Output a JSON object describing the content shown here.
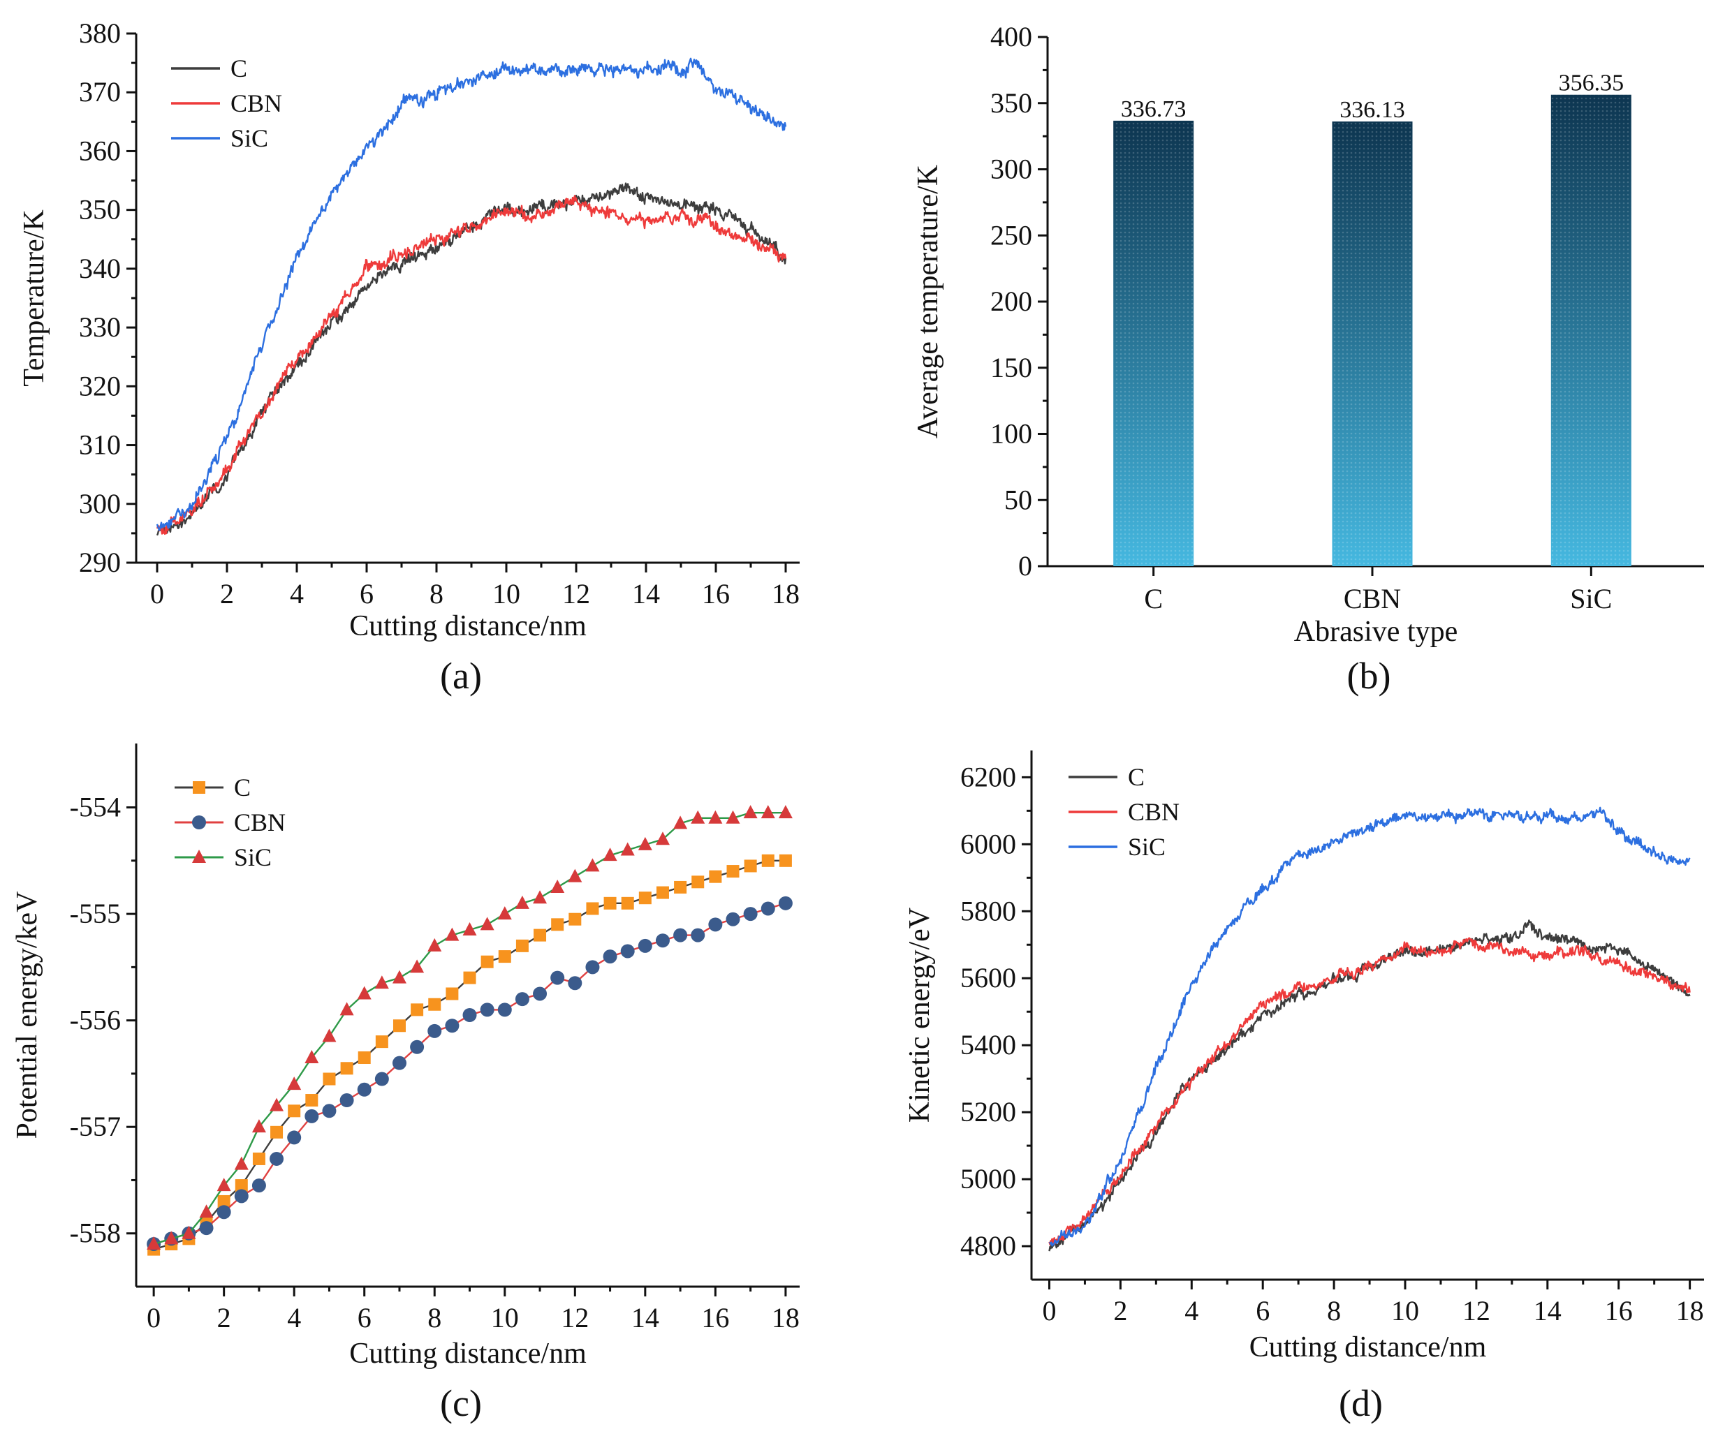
{
  "colors": {
    "C_line": "#3d3d3d",
    "CBN_line": "#ee3a3a",
    "SiC_line": "#2c6fe0",
    "C_marker": "#f7931e",
    "CBN_marker": "#3b5b8c",
    "SiC_marker": "#d63a3a",
    "marker_connector": "#2e9a48",
    "bar_top": "#0d3550",
    "bar_bottom": "#45b8e0"
  },
  "chart_data": [
    {
      "id": "a",
      "panel_label": "(a)",
      "type": "line",
      "xlabel": "Cutting distance/nm",
      "ylabel": "Temperature/K",
      "xlim": [
        -0.6,
        18.4
      ],
      "ylim": [
        290,
        380
      ],
      "xticks": [
        0,
        2,
        4,
        6,
        8,
        10,
        12,
        14,
        16,
        18
      ],
      "yticks": [
        290,
        300,
        310,
        320,
        330,
        340,
        350,
        360,
        370,
        380
      ],
      "legend": [
        "C",
        "CBN",
        "SiC"
      ],
      "series": [
        {
          "name": "C",
          "x": [
            0,
            1,
            2,
            3,
            4,
            5,
            6,
            7,
            8,
            9,
            10,
            11,
            12,
            13,
            13.5,
            14,
            15,
            16,
            17,
            18
          ],
          "y": [
            295,
            298,
            305,
            315,
            324,
            331,
            337,
            341,
            344,
            347,
            350,
            350,
            351,
            353,
            354,
            352,
            351,
            350,
            347,
            342
          ]
        },
        {
          "name": "CBN",
          "x": [
            0,
            1,
            2,
            3,
            4,
            5,
            6,
            7,
            8,
            9,
            10,
            11,
            11.5,
            12,
            13,
            14,
            15,
            16,
            17,
            18
          ],
          "y": [
            295,
            299,
            306,
            316,
            325,
            332,
            340,
            342,
            345,
            347,
            350,
            349,
            351,
            351,
            349,
            348,
            349,
            347,
            345,
            342
          ]
        },
        {
          "name": "SiC",
          "x": [
            0,
            1,
            2,
            3,
            4,
            5,
            6,
            7,
            8,
            9,
            10,
            11,
            12,
            13,
            14,
            15,
            15.5,
            16,
            17,
            18
          ],
          "y": [
            296,
            300,
            311,
            327,
            342,
            353,
            360,
            368,
            370,
            372,
            374,
            374,
            374,
            374,
            374,
            374,
            375,
            371,
            367,
            365
          ]
        }
      ]
    },
    {
      "id": "b",
      "panel_label": "(b)",
      "type": "bar",
      "xlabel": "Abrasive type",
      "ylabel": "Average temperature/K",
      "ylim": [
        0,
        400
      ],
      "yticks": [
        0,
        50,
        100,
        150,
        200,
        250,
        300,
        350,
        400
      ],
      "categories": [
        "C",
        "CBN",
        "SiC"
      ],
      "values": [
        336.73,
        336.13,
        356.35
      ],
      "value_labels": [
        "336.73",
        "336.13",
        "356.35"
      ]
    },
    {
      "id": "c",
      "panel_label": "(c)",
      "type": "line",
      "xlabel": "Cutting distance/nm",
      "ylabel": "Potential energy/keV",
      "xlim": [
        -0.5,
        18.4
      ],
      "ylim": [
        -558.5,
        -553.4
      ],
      "xticks": [
        0,
        2,
        4,
        6,
        8,
        10,
        12,
        14,
        16,
        18
      ],
      "yticks": [
        -558,
        -557,
        -556,
        -555,
        -554
      ],
      "legend": [
        "C",
        "CBN",
        "SiC"
      ],
      "series": [
        {
          "name": "C",
          "marker": "square",
          "x": [
            0,
            0.5,
            1,
            1.5,
            2,
            2.5,
            3,
            3.5,
            4,
            4.5,
            5,
            5.5,
            6,
            6.5,
            7,
            7.5,
            8,
            8.5,
            9,
            9.5,
            10,
            10.5,
            11,
            11.5,
            12,
            12.5,
            13,
            13.5,
            14,
            14.5,
            15,
            15.5,
            16,
            16.5,
            17,
            17.5,
            18
          ],
          "y": [
            -558.15,
            -558.1,
            -558.05,
            -557.9,
            -557.7,
            -557.55,
            -557.3,
            -557.05,
            -556.85,
            -556.75,
            -556.55,
            -556.45,
            -556.35,
            -556.2,
            -556.05,
            -555.9,
            -555.85,
            -555.75,
            -555.6,
            -555.45,
            -555.4,
            -555.3,
            -555.2,
            -555.1,
            -555.05,
            -554.95,
            -554.9,
            -554.9,
            -554.85,
            -554.8,
            -554.75,
            -554.7,
            -554.65,
            -554.6,
            -554.55,
            -554.5,
            -554.5
          ]
        },
        {
          "name": "CBN",
          "marker": "circle",
          "x": [
            0,
            0.5,
            1,
            1.5,
            2,
            2.5,
            3,
            3.5,
            4,
            4.5,
            5,
            5.5,
            6,
            6.5,
            7,
            7.5,
            8,
            8.5,
            9,
            9.5,
            10,
            10.5,
            11,
            11.5,
            12,
            12.5,
            13,
            13.5,
            14,
            14.5,
            15,
            15.5,
            16,
            16.5,
            17,
            17.5,
            18
          ],
          "y": [
            -558.1,
            -558.05,
            -558.0,
            -557.95,
            -557.8,
            -557.65,
            -557.55,
            -557.3,
            -557.1,
            -556.9,
            -556.85,
            -556.75,
            -556.65,
            -556.55,
            -556.4,
            -556.25,
            -556.1,
            -556.05,
            -555.95,
            -555.9,
            -555.9,
            -555.8,
            -555.75,
            -555.6,
            -555.65,
            -555.5,
            -555.4,
            -555.35,
            -555.3,
            -555.25,
            -555.2,
            -555.2,
            -555.1,
            -555.05,
            -555.0,
            -554.95,
            -554.9
          ]
        },
        {
          "name": "SiC",
          "marker": "triangle",
          "x": [
            0,
            0.5,
            1,
            1.5,
            2,
            2.5,
            3,
            3.5,
            4,
            4.5,
            5,
            5.5,
            6,
            6.5,
            7,
            7.5,
            8,
            8.5,
            9,
            9.5,
            10,
            10.5,
            11,
            11.5,
            12,
            12.5,
            13,
            13.5,
            14,
            14.5,
            15,
            15.5,
            16,
            16.5,
            17,
            17.5,
            18
          ],
          "y": [
            -558.1,
            -558.05,
            -558.0,
            -557.8,
            -557.55,
            -557.35,
            -557.0,
            -556.8,
            -556.6,
            -556.35,
            -556.15,
            -555.9,
            -555.75,
            -555.65,
            -555.6,
            -555.5,
            -555.3,
            -555.2,
            -555.15,
            -555.1,
            -555.0,
            -554.9,
            -554.85,
            -554.75,
            -554.65,
            -554.55,
            -554.45,
            -554.4,
            -554.35,
            -554.3,
            -554.15,
            -554.1,
            -554.1,
            -554.1,
            -554.05,
            -554.05,
            -554.05
          ]
        }
      ]
    },
    {
      "id": "d",
      "panel_label": "(d)",
      "type": "line",
      "xlabel": "Cutting distance/nm",
      "ylabel": "Kinetic energy/eV",
      "xlim": [
        -0.5,
        18.4
      ],
      "ylim": [
        4700,
        6280
      ],
      "xticks": [
        0,
        2,
        4,
        6,
        8,
        10,
        12,
        14,
        16,
        18
      ],
      "yticks": [
        4800,
        5000,
        5200,
        5400,
        5600,
        5800,
        6000,
        6200
      ],
      "legend": [
        "C",
        "CBN",
        "SiC"
      ],
      "series": [
        {
          "name": "C",
          "x": [
            0,
            1,
            2,
            3,
            4,
            5,
            6,
            7,
            8,
            9,
            10,
            11,
            12,
            13,
            13.5,
            14,
            15,
            16,
            17,
            18
          ],
          "y": [
            4790,
            4860,
            4990,
            5150,
            5290,
            5390,
            5490,
            5550,
            5590,
            5640,
            5680,
            5690,
            5710,
            5730,
            5760,
            5720,
            5700,
            5680,
            5630,
            5550
          ]
        },
        {
          "name": "CBN",
          "x": [
            0,
            1,
            2,
            3,
            4,
            5,
            6,
            7,
            8,
            9,
            10,
            11,
            11.5,
            12,
            13,
            14,
            15,
            16,
            17,
            18
          ],
          "y": [
            4800,
            4880,
            5010,
            5160,
            5300,
            5400,
            5530,
            5560,
            5600,
            5640,
            5700,
            5670,
            5710,
            5700,
            5680,
            5670,
            5680,
            5640,
            5610,
            5550
          ]
        },
        {
          "name": "SiC",
          "x": [
            0,
            1,
            2,
            3,
            4,
            5,
            6,
            7,
            8,
            9,
            10,
            11,
            12,
            13,
            14,
            15,
            15.5,
            16,
            17,
            18
          ],
          "y": [
            4800,
            4860,
            5060,
            5330,
            5580,
            5760,
            5870,
            5960,
            6010,
            6050,
            6080,
            6090,
            6090,
            6080,
            6080,
            6080,
            6100,
            6030,
            5970,
            5940
          ]
        }
      ]
    }
  ]
}
